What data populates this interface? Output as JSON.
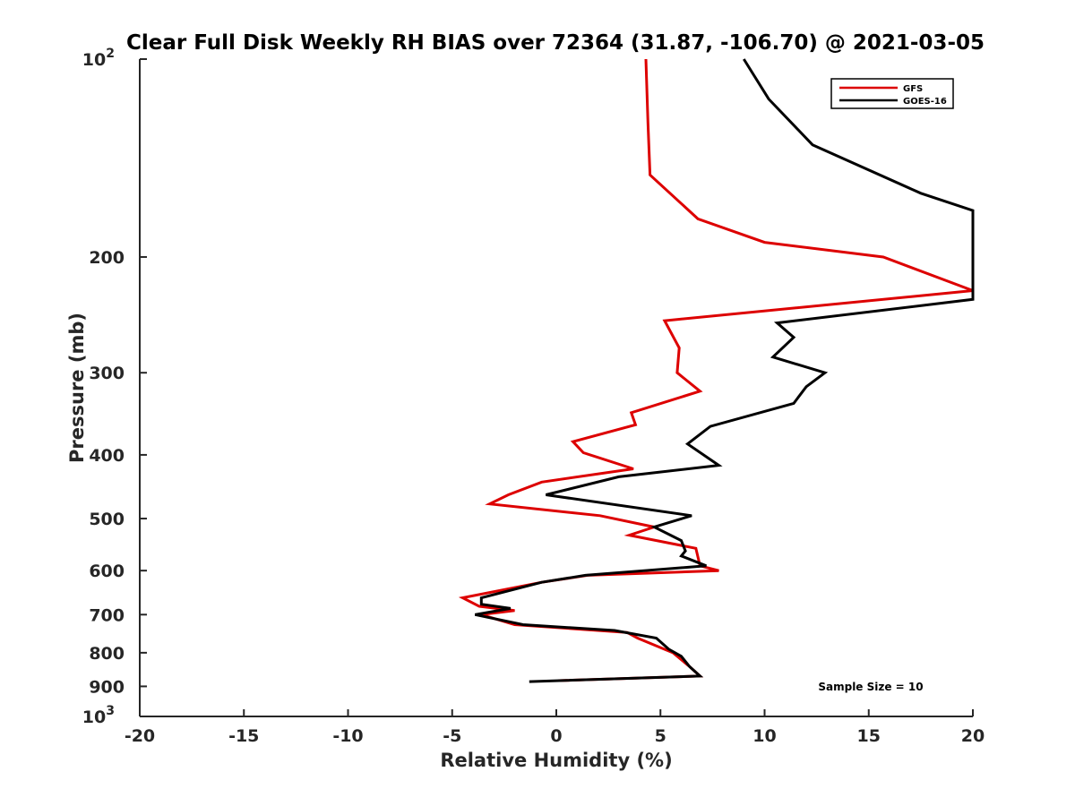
{
  "chart_data": {
    "type": "line",
    "title": "Clear Full Disk Weekly RH BIAS over 72364 (31.87, -106.70) @ 2021-03-05",
    "xlabel": "Relative Humidity (%)",
    "ylabel": "Pressure (mb)",
    "xlim": [
      -20,
      20
    ],
    "ylim": [
      100,
      1000
    ],
    "y_scale": "log",
    "y_reversed": true,
    "grid": false,
    "legend_position": "top-right",
    "x_ticks": [
      "-20",
      "-15",
      "-10",
      "-5",
      "0",
      "5",
      "10",
      "15",
      "20"
    ],
    "y_ticks": [
      {
        "value": 100,
        "base": "10",
        "exp": "2"
      },
      {
        "value": 200,
        "label": "200"
      },
      {
        "value": 300,
        "label": "300"
      },
      {
        "value": 400,
        "label": "400"
      },
      {
        "value": 500,
        "label": "500"
      },
      {
        "value": 600,
        "label": "600"
      },
      {
        "value": 700,
        "label": "700"
      },
      {
        "value": 800,
        "label": "800"
      },
      {
        "value": 900,
        "label": "900"
      },
      {
        "value": 1000,
        "base": "10",
        "exp": "3"
      }
    ],
    "annotation": "Sample Size = 10",
    "series": [
      {
        "name": "GFS",
        "color": "#dd0000",
        "points": [
          [
            4.3,
            100
          ],
          [
            4.4,
            125
          ],
          [
            4.5,
            150
          ],
          [
            6.8,
            175
          ],
          [
            10.0,
            190
          ],
          [
            15.7,
            200
          ],
          [
            20.0,
            225
          ],
          [
            5.2,
            250
          ],
          [
            5.9,
            275
          ],
          [
            5.8,
            300
          ],
          [
            6.9,
            320
          ],
          [
            3.6,
            345
          ],
          [
            3.8,
            360
          ],
          [
            0.8,
            382
          ],
          [
            1.3,
            397
          ],
          [
            3.7,
            420
          ],
          [
            -0.7,
            440
          ],
          [
            -2.3,
            460
          ],
          [
            -3.2,
            475
          ],
          [
            2.1,
            495
          ],
          [
            4.7,
            515
          ],
          [
            3.5,
            530
          ],
          [
            6.7,
            555
          ],
          [
            6.9,
            590
          ],
          [
            7.8,
            600
          ],
          [
            1.5,
            610
          ],
          [
            -0.7,
            625
          ],
          [
            -4.5,
            660
          ],
          [
            -3.7,
            680
          ],
          [
            -2.0,
            690
          ],
          [
            -3.6,
            700
          ],
          [
            -2.0,
            725
          ],
          [
            3.4,
            745
          ],
          [
            3.9,
            760
          ],
          [
            5.6,
            800
          ],
          [
            6.4,
            840
          ],
          [
            6.9,
            868
          ],
          [
            0.1,
            882
          ]
        ]
      },
      {
        "name": "GOES-16",
        "color": "#000000",
        "points": [
          [
            9.0,
            100
          ],
          [
            10.2,
            115
          ],
          [
            12.3,
            135
          ],
          [
            17.5,
            160
          ],
          [
            20.0,
            170
          ],
          [
            20.0,
            232
          ],
          [
            10.6,
            252
          ],
          [
            11.4,
            265
          ],
          [
            10.4,
            284
          ],
          [
            12.9,
            300
          ],
          [
            12.0,
            315
          ],
          [
            11.4,
            334
          ],
          [
            7.4,
            362
          ],
          [
            6.3,
            385
          ],
          [
            7.8,
            415
          ],
          [
            3.0,
            432
          ],
          [
            -0.5,
            460
          ],
          [
            6.5,
            495
          ],
          [
            4.7,
            515
          ],
          [
            6.0,
            540
          ],
          [
            6.2,
            560
          ],
          [
            6.0,
            570
          ],
          [
            7.2,
            590
          ],
          [
            1.4,
            610
          ],
          [
            -0.7,
            625
          ],
          [
            -3.6,
            660
          ],
          [
            -3.6,
            675
          ],
          [
            -2.2,
            685
          ],
          [
            -3.9,
            700
          ],
          [
            -1.6,
            725
          ],
          [
            2.8,
            740
          ],
          [
            4.8,
            760
          ],
          [
            5.4,
            790
          ],
          [
            6.0,
            810
          ],
          [
            6.4,
            840
          ],
          [
            6.9,
            868
          ],
          [
            -1.3,
            885
          ]
        ]
      }
    ]
  }
}
